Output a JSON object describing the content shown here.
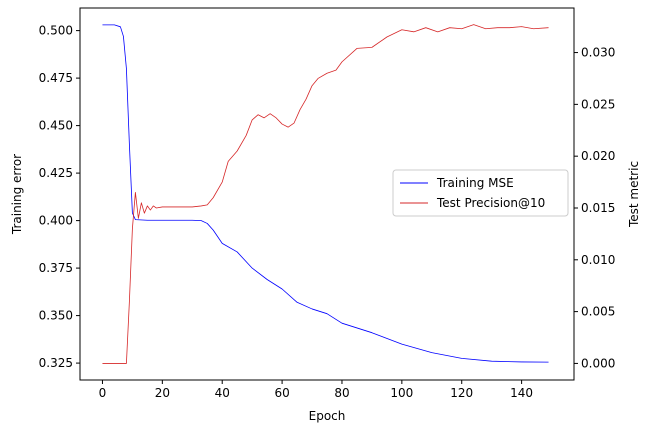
{
  "chart_data": {
    "type": "line",
    "title": "",
    "xlabel": "Epoch",
    "ylabel_left": "Training error",
    "ylabel_right": "Test metric",
    "xlim": [
      -7.5,
      157.5
    ],
    "ylim_left": [
      0.3161,
      0.5119
    ],
    "ylim_right": [
      -0.0016,
      0.0343
    ],
    "x_ticks": [
      0,
      20,
      40,
      60,
      80,
      100,
      120,
      140
    ],
    "y_ticks_left": [
      0.325,
      0.35,
      0.375,
      0.4,
      0.425,
      0.45,
      0.475,
      0.5
    ],
    "y_ticks_left_labels": [
      "0.325",
      "0.350",
      "0.375",
      "0.400",
      "0.425",
      "0.450",
      "0.475",
      "0.500"
    ],
    "y_ticks_right": [
      0.0,
      0.005,
      0.01,
      0.015,
      0.02,
      0.025,
      0.03
    ],
    "y_ticks_right_labels": [
      "0.000",
      "0.005",
      "0.010",
      "0.015",
      "0.020",
      "0.025",
      "0.030"
    ],
    "grid": false,
    "legend_position": "center-right",
    "series": [
      {
        "name": "Training MSE",
        "axis": "left",
        "color": "#0000ff",
        "points": [
          [
            0,
            0.503
          ],
          [
            4,
            0.503
          ],
          [
            6,
            0.502
          ],
          [
            7,
            0.497
          ],
          [
            8,
            0.48
          ],
          [
            9,
            0.44
          ],
          [
            10,
            0.404
          ],
          [
            11,
            0.4005
          ],
          [
            15,
            0.4002
          ],
          [
            20,
            0.4002
          ],
          [
            25,
            0.4002
          ],
          [
            30,
            0.4002
          ],
          [
            33,
            0.4
          ],
          [
            35,
            0.3985
          ],
          [
            37,
            0.395
          ],
          [
            40,
            0.388
          ],
          [
            45,
            0.3835
          ],
          [
            50,
            0.375
          ],
          [
            55,
            0.369
          ],
          [
            60,
            0.364
          ],
          [
            65,
            0.357
          ],
          [
            70,
            0.3535
          ],
          [
            75,
            0.351
          ],
          [
            80,
            0.346
          ],
          [
            90,
            0.341
          ],
          [
            100,
            0.335
          ],
          [
            110,
            0.3305
          ],
          [
            120,
            0.3275
          ],
          [
            130,
            0.326
          ],
          [
            140,
            0.3256
          ],
          [
            149,
            0.3255
          ]
        ]
      },
      {
        "name": "Test Precision@10",
        "axis": "right",
        "color": "#d62728",
        "points": [
          [
            0,
            0.0
          ],
          [
            8,
            0.0
          ],
          [
            9,
            0.006
          ],
          [
            10,
            0.013
          ],
          [
            11,
            0.0165
          ],
          [
            12,
            0.014
          ],
          [
            13,
            0.0155
          ],
          [
            14,
            0.0145
          ],
          [
            15,
            0.0152
          ],
          [
            16,
            0.0148
          ],
          [
            17,
            0.0152
          ],
          [
            18,
            0.015
          ],
          [
            20,
            0.0151
          ],
          [
            25,
            0.0151
          ],
          [
            30,
            0.0151
          ],
          [
            33,
            0.0152
          ],
          [
            35,
            0.0153
          ],
          [
            37,
            0.016
          ],
          [
            40,
            0.0175
          ],
          [
            42,
            0.0195
          ],
          [
            45,
            0.0205
          ],
          [
            48,
            0.022
          ],
          [
            50,
            0.0235
          ],
          [
            52,
            0.024
          ],
          [
            54,
            0.0237
          ],
          [
            56,
            0.0241
          ],
          [
            58,
            0.0237
          ],
          [
            60,
            0.0231
          ],
          [
            62,
            0.0228
          ],
          [
            64,
            0.0232
          ],
          [
            66,
            0.0245
          ],
          [
            68,
            0.0255
          ],
          [
            70,
            0.0268
          ],
          [
            72,
            0.0275
          ],
          [
            75,
            0.028
          ],
          [
            78,
            0.0283
          ],
          [
            80,
            0.0291
          ],
          [
            85,
            0.0304
          ],
          [
            90,
            0.0305
          ],
          [
            95,
            0.0315
          ],
          [
            100,
            0.0322
          ],
          [
            104,
            0.032
          ],
          [
            108,
            0.0324
          ],
          [
            112,
            0.032
          ],
          [
            116,
            0.0324
          ],
          [
            120,
            0.0323
          ],
          [
            124,
            0.0327
          ],
          [
            128,
            0.0323
          ],
          [
            132,
            0.0324
          ],
          [
            136,
            0.0324
          ],
          [
            140,
            0.0325
          ],
          [
            144,
            0.0323
          ],
          [
            149,
            0.0324
          ]
        ]
      }
    ]
  }
}
